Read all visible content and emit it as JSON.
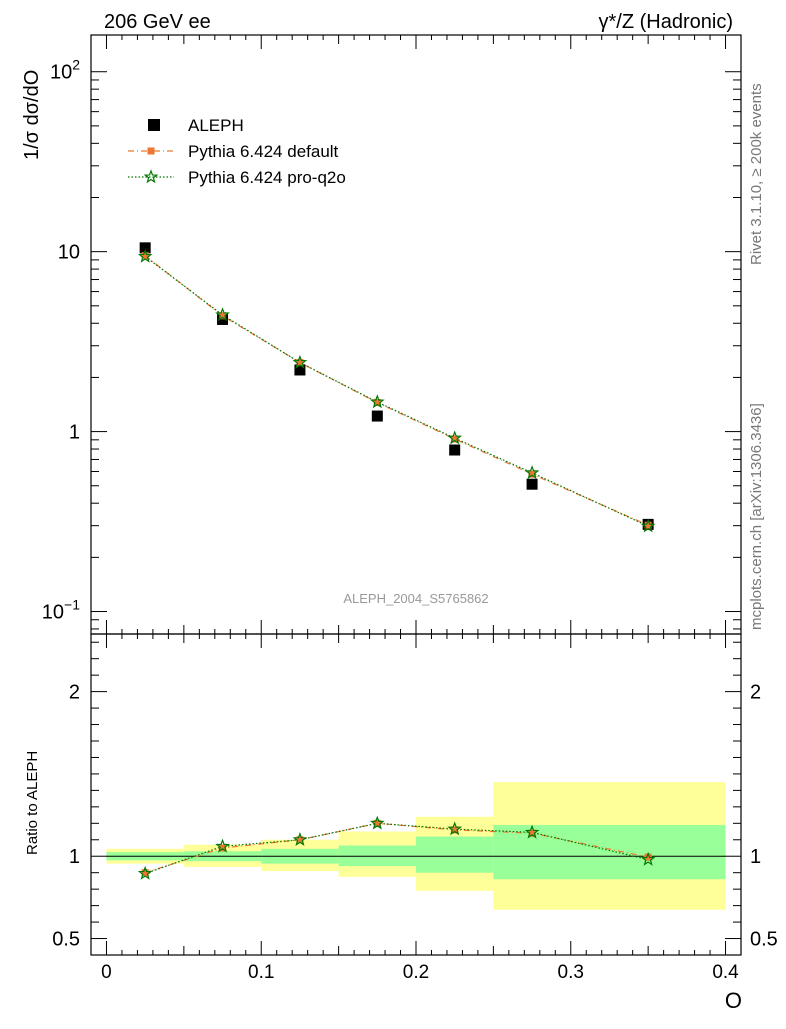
{
  "header": {
    "left": "206 GeV ee",
    "right": "γ*/Z (Hadronic)"
  },
  "side_labels": {
    "rivet": "Rivet 3.1.10, ≥ 200k events",
    "mcplots": "mcplots.cern.ch [arXiv:1306.3436]"
  },
  "watermark": "ALEPH_2004_S5765862",
  "colors": {
    "data": "#000000",
    "default": "#ee7733",
    "pro": "#007700",
    "band_outer": "#ffff99",
    "band_inner": "#99ff99"
  },
  "chart_data": [
    {
      "type": "scatter",
      "panel": "main",
      "ylabel": "1/σ  dσ/dO",
      "yscale": "log",
      "xlim": [
        -0.01,
        0.41
      ],
      "ylim": [
        0.075,
        160
      ],
      "yticks": [
        {
          "value": 100,
          "base": "10",
          "exp": "2"
        },
        {
          "value": 10,
          "base": "10",
          "exp": ""
        },
        {
          "value": 1,
          "base": "1",
          "exp": ""
        },
        {
          "value": 0.1,
          "base": "10",
          "exp": "−1"
        }
      ],
      "legend_position": "top-left",
      "series": [
        {
          "name": "ALEPH",
          "marker": "square",
          "x": [
            0.025,
            0.075,
            0.125,
            0.175,
            0.225,
            0.275,
            0.35
          ],
          "y": [
            10.5,
            4.2,
            2.2,
            1.22,
            0.79,
            0.51,
            0.305
          ]
        },
        {
          "name": "Pythia 6.424 default",
          "marker": "small-square",
          "line": "dash-dot",
          "x": [
            0.025,
            0.075,
            0.125,
            0.175,
            0.225,
            0.275,
            0.35
          ],
          "y": [
            9.5,
            4.4,
            2.42,
            1.45,
            0.91,
            0.58,
            0.302
          ]
        },
        {
          "name": "Pythia 6.424 pro-q2o",
          "marker": "star",
          "line": "dotted",
          "x": [
            0.025,
            0.075,
            0.125,
            0.175,
            0.225,
            0.275,
            0.35
          ],
          "y": [
            9.4,
            4.45,
            2.42,
            1.46,
            0.92,
            0.59,
            0.298
          ]
        }
      ]
    },
    {
      "type": "scatter",
      "panel": "ratio",
      "ylabel": "Ratio to ALEPH",
      "xlabel": "O",
      "xlim": [
        -0.01,
        0.41
      ],
      "ylim": [
        0.4,
        2.35
      ],
      "xticks": [
        "0",
        "0.1",
        "0.2",
        "0.3",
        "0.4"
      ],
      "yticks": [
        "0.5",
        "1",
        "2"
      ],
      "bands": [
        {
          "x0": 0.0,
          "x1": 0.05,
          "outer": [
            0.955,
            1.045
          ],
          "inner": [
            0.975,
            1.025
          ]
        },
        {
          "x0": 0.05,
          "x1": 0.1,
          "outer": [
            0.935,
            1.07
          ],
          "inner": [
            0.97,
            1.03
          ]
        },
        {
          "x0": 0.1,
          "x1": 0.15,
          "outer": [
            0.91,
            1.1
          ],
          "inner": [
            0.955,
            1.045
          ]
        },
        {
          "x0": 0.15,
          "x1": 0.2,
          "outer": [
            0.875,
            1.15
          ],
          "inner": [
            0.94,
            1.065
          ]
        },
        {
          "x0": 0.2,
          "x1": 0.25,
          "outer": [
            0.79,
            1.24
          ],
          "inner": [
            0.9,
            1.12
          ]
        },
        {
          "x0": 0.25,
          "x1": 0.4,
          "outer": [
            0.675,
            1.45
          ],
          "inner": [
            0.86,
            1.19
          ]
        }
      ],
      "series": [
        {
          "name": "Pythia 6.424 default",
          "x": [
            0.025,
            0.075,
            0.125,
            0.175,
            0.225,
            0.275,
            0.35
          ],
          "y": [
            0.9,
            1.05,
            1.1,
            1.2,
            1.16,
            1.14,
            0.995
          ]
        },
        {
          "name": "Pythia 6.424 pro-q2o",
          "x": [
            0.025,
            0.075,
            0.125,
            0.175,
            0.225,
            0.275,
            0.35
          ],
          "y": [
            0.895,
            1.06,
            1.1,
            1.2,
            1.165,
            1.145,
            0.98
          ]
        }
      ]
    }
  ]
}
